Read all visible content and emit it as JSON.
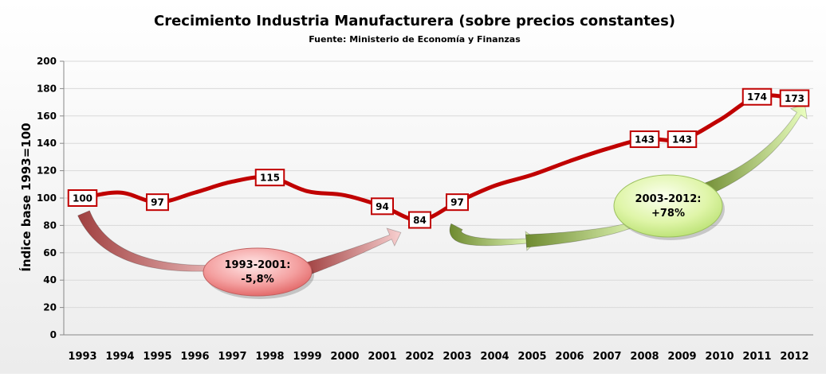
{
  "chart_data": {
    "type": "line",
    "title": "Crecimiento Industria Manufacturera (sobre precios constantes)",
    "subtitle": "Fuente: Ministerio de Economía y Finanzas",
    "xlabel": "",
    "ylabel": "Índice base 1993=100",
    "ylim": [
      0,
      200
    ],
    "yticks": [
      0,
      20,
      40,
      60,
      80,
      100,
      120,
      140,
      160,
      180,
      200
    ],
    "grid": true,
    "legend": "none",
    "categories": [
      "1993",
      "1994",
      "1995",
      "1996",
      "1997",
      "1998",
      "1999",
      "2000",
      "2001",
      "2002",
      "2003",
      "2004",
      "2005",
      "2006",
      "2007",
      "2008",
      "2009",
      "2010",
      "2011",
      "2012"
    ],
    "series": [
      {
        "values": [
          100,
          104,
          97,
          104,
          112,
          115,
          105,
          102,
          94,
          84,
          97,
          109,
          117,
          127,
          136,
          143,
          143,
          157,
          174,
          173
        ]
      }
    ],
    "data_labels": [
      {
        "index": 0,
        "text": "100"
      },
      {
        "index": 2,
        "text": "97"
      },
      {
        "index": 5,
        "text": "115"
      },
      {
        "index": 8,
        "text": "94"
      },
      {
        "index": 9,
        "text": "84"
      },
      {
        "index": 10,
        "text": "97"
      },
      {
        "index": 15,
        "text": "143"
      },
      {
        "index": 16,
        "text": "143"
      },
      {
        "index": 18,
        "text": "174"
      },
      {
        "index": 19,
        "text": "173"
      }
    ],
    "annotations": [
      {
        "lines": [
          "1993-2001:",
          "-5,8%"
        ],
        "color": "#f08080"
      },
      {
        "lines": [
          "2003-2012:",
          "+78%"
        ],
        "color": "#d8f0a0"
      }
    ],
    "colors": {
      "line": "#c00000",
      "label_border": "#c00000",
      "grid": "#d9d9d9",
      "annotation_red": "#f4a0a0",
      "annotation_green": "#d4f09a"
    }
  }
}
